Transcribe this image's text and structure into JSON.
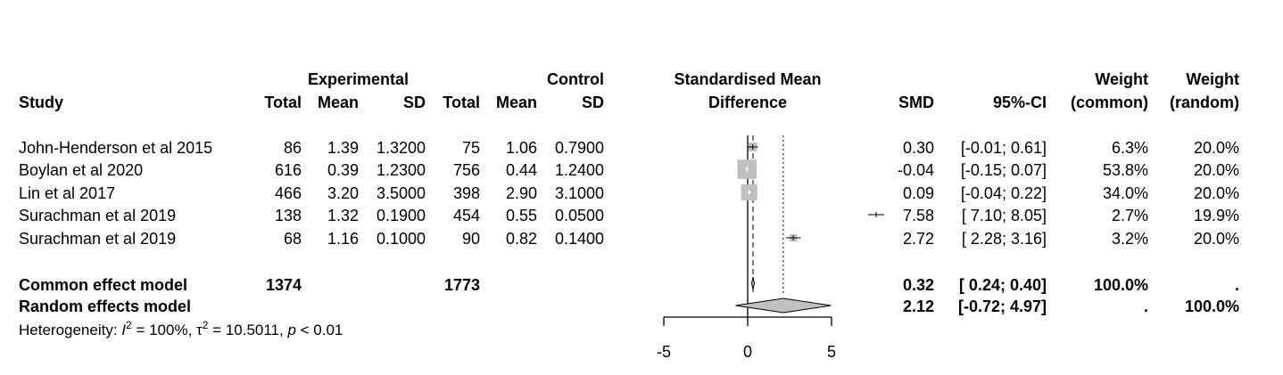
{
  "chart_data": {
    "type": "forest",
    "headers": {
      "study": "Study",
      "experimental": "Experimental",
      "control": "Control",
      "total": "Total",
      "mean": "Mean",
      "sd": "SD",
      "effect_line1": "Standardised Mean",
      "effect_line2": "Difference",
      "smd": "SMD",
      "ci": "95%-CI",
      "weight": "Weight",
      "weight_common": "(common)",
      "weight_random": "(random)"
    },
    "studies": [
      {
        "name": "John-Henderson et al 2015",
        "exp_total": "86",
        "exp_mean": "1.39",
        "exp_sd": "1.3200",
        "ctl_total": "75",
        "ctl_mean": "1.06",
        "ctl_sd": "0.7900",
        "smd": 0.3,
        "lower": -0.01,
        "upper": 0.61,
        "smd_text": "0.30",
        "ci_text": "[-0.01; 0.61]",
        "w_common": "6.3%",
        "w_random": "20.0%",
        "w_common_value": 6.3
      },
      {
        "name": "Boylan et al 2020",
        "exp_total": "616",
        "exp_mean": "0.39",
        "exp_sd": "1.2300",
        "ctl_total": "756",
        "ctl_mean": "0.44",
        "ctl_sd": "1.2400",
        "smd": -0.04,
        "lower": -0.15,
        "upper": 0.07,
        "smd_text": "-0.04",
        "ci_text": "[-0.15; 0.07]",
        "w_common": "53.8%",
        "w_random": "20.0%",
        "w_common_value": 53.8
      },
      {
        "name": "Lin et al 2017",
        "exp_total": "466",
        "exp_mean": "3.20",
        "exp_sd": "3.5000",
        "ctl_total": "398",
        "ctl_mean": "2.90",
        "ctl_sd": "3.1000",
        "smd": 0.09,
        "lower": -0.04,
        "upper": 0.22,
        "smd_text": "0.09",
        "ci_text": "[-0.04; 0.22]",
        "w_common": "34.0%",
        "w_random": "20.0%",
        "w_common_value": 34.0
      },
      {
        "name": "Surachman et al 2019",
        "exp_total": "138",
        "exp_mean": "1.32",
        "exp_sd": "0.1900",
        "ctl_total": "454",
        "ctl_mean": "0.55",
        "ctl_sd": "0.0500",
        "smd": 7.58,
        "lower": 7.1,
        "upper": 8.05,
        "smd_text": "7.58",
        "ci_text": "[ 7.10; 8.05]",
        "w_common": "2.7%",
        "w_random": "19.9%",
        "w_common_value": 2.7
      },
      {
        "name": "Surachman et al 2019",
        "exp_total": "68",
        "exp_mean": "1.16",
        "exp_sd": "0.1000",
        "ctl_total": "90",
        "ctl_mean": "0.82",
        "ctl_sd": "0.1400",
        "smd": 2.72,
        "lower": 2.28,
        "upper": 3.16,
        "smd_text": "2.72",
        "ci_text": "[ 2.28; 3.16]",
        "w_common": "3.2%",
        "w_random": "20.0%",
        "w_common_value": 3.2
      }
    ],
    "common": {
      "name": "Common effect model",
      "exp_total": "1374",
      "ctl_total": "1773",
      "smd": 0.32,
      "lower": 0.24,
      "upper": 0.4,
      "smd_text": "0.32",
      "ci_text": "[ 0.24; 0.40]",
      "w_common": "100.0%",
      "w_random": "."
    },
    "random": {
      "name": "Random effects model",
      "smd": 2.12,
      "lower": -0.72,
      "upper": 4.97,
      "smd_text": "2.12",
      "ci_text": "[-0.72; 4.97]",
      "w_common": ".",
      "w_random": "100.0%"
    },
    "heterogeneity": {
      "label": "Heterogeneity: ",
      "i2_symbol": "I",
      "i2_sup": "2",
      "i2_value": " = 100%, ",
      "tau_symbol": "τ",
      "tau_sup": "2",
      "tau_value": " = 10.5011, ",
      "p_symbol": "p",
      "p_value": " < 0.01"
    },
    "xaxis": {
      "ticks": [
        -5,
        0,
        5
      ],
      "tick_labels": [
        "-5",
        "0",
        "5"
      ],
      "range": [
        -5,
        5
      ]
    },
    "null_line": 0,
    "colors": {
      "square": "#c0c0c0",
      "diamond": "#c0c0c0",
      "line": "#000000"
    }
  }
}
